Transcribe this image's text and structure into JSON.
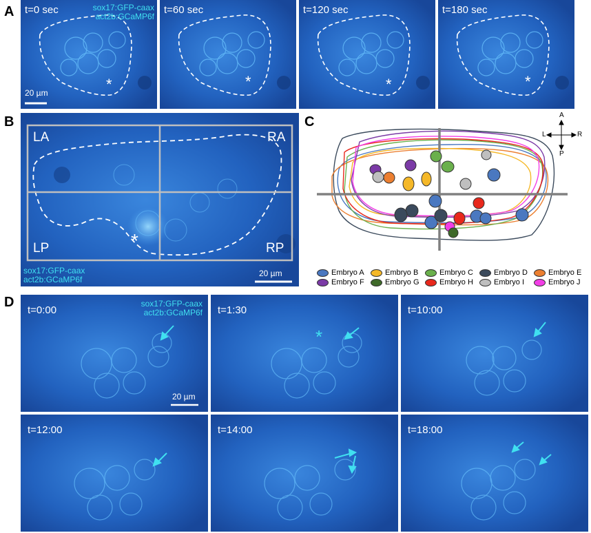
{
  "panels": {
    "A": {
      "letter": "A",
      "frames": [
        {
          "time": "t=0 sec"
        },
        {
          "time": "t=60 sec"
        },
        {
          "time": "t=120 sec"
        },
        {
          "time": "t=180 sec"
        }
      ],
      "channels": [
        "sox17:GFP-caax",
        "act2b:GCaMP6f"
      ],
      "scale_bar": "20 µm",
      "asterisk": "*"
    },
    "B": {
      "letter": "B",
      "quadrants": {
        "la": "LA",
        "ra": "RA",
        "lp": "LP",
        "rp": "RP"
      },
      "channels": [
        "sox17:GFP-caax",
        "act2b:GCaMP6f"
      ],
      "scale_bar": "20 µm",
      "asterisk": "*"
    },
    "C": {
      "letter": "C",
      "compass": {
        "up": "A",
        "down": "P",
        "left": "L",
        "right": "R"
      },
      "legend": [
        {
          "label": "Embryo A",
          "color": "#4a78c0"
        },
        {
          "label": "Embryo B",
          "color": "#f5b828"
        },
        {
          "label": "Embryo C",
          "color": "#6ab04c"
        },
        {
          "label": "Embryo D",
          "color": "#3b4a5c"
        },
        {
          "label": "Embryo E",
          "color": "#ec7f30"
        },
        {
          "label": "Embryo F",
          "color": "#7b3aa6"
        },
        {
          "label": "Embryo G",
          "color": "#3f6a2a"
        },
        {
          "label": "Embryo H",
          "color": "#e8281c"
        },
        {
          "label": "Embryo I",
          "color": "#bfbfbf"
        },
        {
          "label": "Embryo J",
          "color": "#f23ee6"
        }
      ]
    },
    "D": {
      "letter": "D",
      "frames": [
        {
          "time": "t=0:00"
        },
        {
          "time": "t=1:30"
        },
        {
          "time": "t=10:00"
        },
        {
          "time": "t=12:00"
        },
        {
          "time": "t=14:00"
        },
        {
          "time": "t=18:00"
        }
      ],
      "channels": [
        "sox17:GFP-caax",
        "act2b:GCaMP6f"
      ],
      "scale_bar": "20 µm",
      "asterisk": "*"
    }
  },
  "colors": {
    "micro_bg": "#1f58b8",
    "cyan_label": "#40e0f0",
    "outline": "#ffffff"
  }
}
